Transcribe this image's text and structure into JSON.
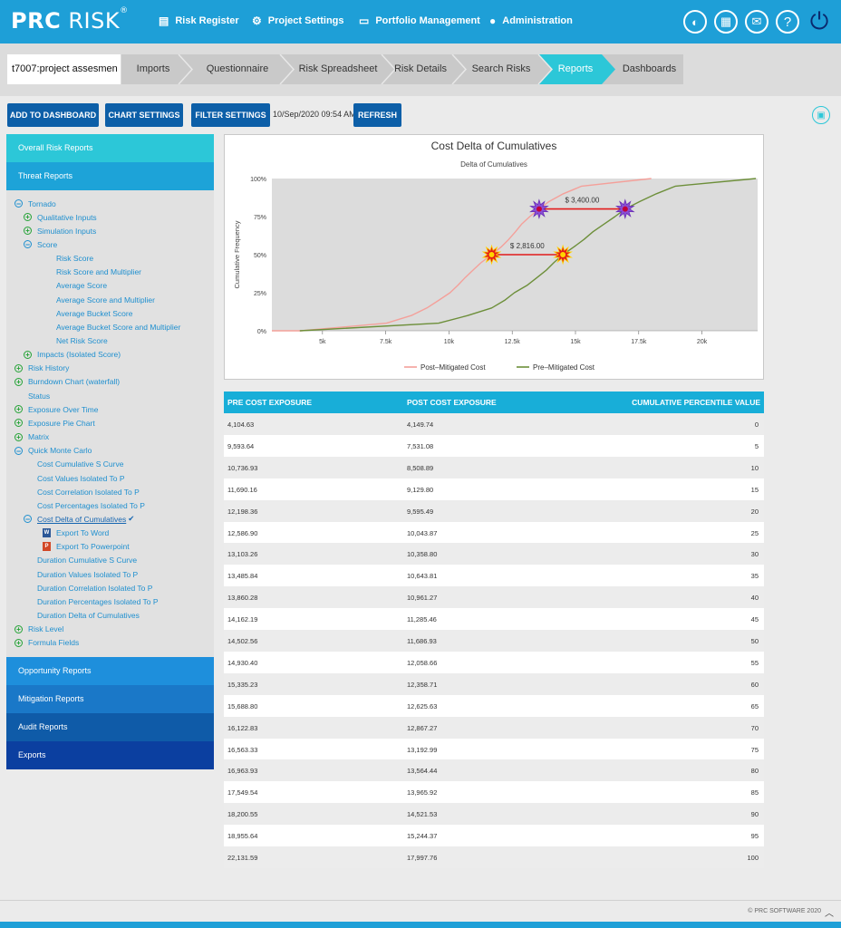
{
  "app": {
    "logo_bold": "PRC",
    "logo_thin": "RISK",
    "logo_mark": "®"
  },
  "nav": [
    {
      "label": "Risk Register",
      "icon": "register-icon"
    },
    {
      "label": "Project Settings",
      "icon": "settings-icon"
    },
    {
      "label": "Portfolio Management",
      "icon": "folder-icon"
    },
    {
      "label": "Administration",
      "icon": "user-icon"
    }
  ],
  "toolbar_icons": [
    "toggle-icon",
    "calendar-icon",
    "mail-icon",
    "help-icon",
    "power-icon"
  ],
  "project": {
    "name": "t7007:project assesmen"
  },
  "breadcrumbs": [
    "Imports",
    "Questionnaire",
    "Risk Spreadsheet",
    "Risk Details",
    "Search Risks",
    "Reports",
    "Dashboards"
  ],
  "active_crumb": "Reports",
  "actions": {
    "add_dashboard": "ADD TO DASHBOARD",
    "chart_settings": "CHART SETTINGS",
    "filter_settings": "FILTER SETTINGS",
    "timestamp": "10/Sep/2020 09:54 AM",
    "refresh": "REFRESH"
  },
  "sidebar": {
    "sections": [
      "Overall Risk Reports",
      "Threat Reports",
      "Opportunity Reports",
      "Mitigation Reports",
      "Audit Reports",
      "Exports"
    ],
    "tree": [
      {
        "label": "Tornado",
        "level": 0,
        "node": "minus"
      },
      {
        "label": "Qualitative Inputs",
        "level": 1,
        "node": "plus"
      },
      {
        "label": "Simulation Inputs",
        "level": 1,
        "node": "plus"
      },
      {
        "label": "Score",
        "level": 1,
        "node": "minus"
      },
      {
        "label": "Risk Score",
        "level": 2,
        "node": "none"
      },
      {
        "label": "Risk Score and Multiplier",
        "level": 2,
        "node": "none"
      },
      {
        "label": "Average Score",
        "level": 2,
        "node": "none"
      },
      {
        "label": "Average Score and Multiplier",
        "level": 2,
        "node": "none"
      },
      {
        "label": "Average Bucket Score",
        "level": 2,
        "node": "none"
      },
      {
        "label": "Average Bucket Score and Multiplier",
        "level": 2,
        "node": "none"
      },
      {
        "label": "Net Risk Score",
        "level": 2,
        "node": "none"
      },
      {
        "label": "Impacts (Isolated Score)",
        "level": 1,
        "node": "plus"
      },
      {
        "label": "Risk History",
        "level": 0,
        "node": "plus"
      },
      {
        "label": "Burndown Chart (waterfall)",
        "level": 0,
        "node": "plus"
      },
      {
        "label": "Status",
        "level": 0,
        "node": "none"
      },
      {
        "label": "Exposure Over Time",
        "level": 0,
        "node": "plus"
      },
      {
        "label": "Exposure Pie Chart",
        "level": 0,
        "node": "plus"
      },
      {
        "label": "Matrix",
        "level": 0,
        "node": "plus"
      },
      {
        "label": "Quick Monte Carlo",
        "level": 0,
        "node": "minus"
      },
      {
        "label": "Cost Cumulative S Curve",
        "level": 1,
        "node": "none"
      },
      {
        "label": "Cost Values Isolated To P",
        "level": 1,
        "node": "none"
      },
      {
        "label": "Cost Correlation Isolated To P",
        "level": 1,
        "node": "none"
      },
      {
        "label": "Cost Percentages Isolated To P",
        "level": 1,
        "node": "none"
      },
      {
        "label": "Cost Delta of Cumulatives",
        "level": 1,
        "node": "minus",
        "selected": true,
        "check": "✔"
      },
      {
        "label": "Export To Word",
        "level": 2,
        "node": "word"
      },
      {
        "label": "Export To Powerpoint",
        "level": 2,
        "node": "ppt"
      },
      {
        "label": "Duration Cumulative S Curve",
        "level": 1,
        "node": "none"
      },
      {
        "label": "Duration Values Isolated To P",
        "level": 1,
        "node": "none"
      },
      {
        "label": "Duration Correlation Isolated To P",
        "level": 1,
        "node": "none"
      },
      {
        "label": "Duration Percentages Isolated To P",
        "level": 1,
        "node": "none"
      },
      {
        "label": "Duration Delta of Cumulatives",
        "level": 1,
        "node": "none"
      },
      {
        "label": "Risk Level",
        "level": 0,
        "node": "plus"
      },
      {
        "label": "Formula Fields",
        "level": 0,
        "node": "plus"
      }
    ]
  },
  "chart_data": {
    "type": "line",
    "title": "Cost Delta of Cumulatives",
    "subtitle": "Delta of Cumulatives",
    "ylabel": "Cumulative Frequency",
    "xlabel": "",
    "xlim": [
      3000,
      22200
    ],
    "ylim": [
      0,
      100
    ],
    "xticks": [
      5000,
      7500,
      10000,
      12500,
      15000,
      17500,
      20000
    ],
    "xtick_labels": [
      "5k",
      "7.5k",
      "10k",
      "12.5k",
      "15k",
      "17.5k",
      "20k"
    ],
    "yticks": [
      0,
      25,
      50,
      75,
      100
    ],
    "ytick_labels": [
      "0%",
      "25%",
      "50%",
      "75%",
      "100%"
    ],
    "series": [
      {
        "name": "Post–Mitigated Cost",
        "color": "#f4a09a",
        "x": [
          3000,
          4149.74,
          7531.08,
          8508.89,
          9129.8,
          9595.49,
          10043.87,
          10358.8,
          10643.81,
          10961.27,
          11285.46,
          11686.93,
          12058.66,
          12358.71,
          12625.63,
          12867.27,
          13192.99,
          13564.44,
          13965.92,
          14521.53,
          15244.37,
          17997.76
        ],
        "y": [
          0,
          0,
          5,
          10,
          15,
          20,
          25,
          30,
          35,
          40,
          45,
          50,
          55,
          60,
          65,
          70,
          75,
          80,
          85,
          90,
          95,
          100
        ]
      },
      {
        "name": "Pre–Mitigated Cost",
        "color": "#6d8f3a",
        "x": [
          4104.63,
          9593.64,
          10736.93,
          11690.16,
          12198.36,
          12586.9,
          13103.26,
          13485.84,
          13860.28,
          14162.19,
          14502.56,
          14930.4,
          15335.23,
          15688.8,
          16122.83,
          16563.33,
          16963.93,
          17549.54,
          18200.55,
          18955.64,
          22131.59
        ],
        "y": [
          0,
          5,
          10,
          15,
          20,
          25,
          30,
          35,
          40,
          45,
          50,
          55,
          60,
          65,
          70,
          75,
          80,
          85,
          90,
          95,
          100
        ]
      }
    ],
    "annotations": [
      {
        "label": "$ 2,816.00",
        "y": 50,
        "x_from": 11686.93,
        "x_to": 14502.56,
        "marker": "red-star"
      },
      {
        "label": "$ 3,400.00",
        "y": 80,
        "x_from": 13564.44,
        "x_to": 16963.93,
        "marker": "purple-star"
      }
    ],
    "legend_position": "bottom",
    "grid": false,
    "plot_background": "#dcdcdc"
  },
  "table": {
    "headers": [
      "PRE COST EXPOSURE",
      "POST COST EXPOSURE",
      "CUMULATIVE PERCENTILE VALUE"
    ],
    "rows": [
      [
        "4,104.63",
        "4,149.74",
        "0"
      ],
      [
        "9,593.64",
        "7,531.08",
        "5"
      ],
      [
        "10,736.93",
        "8,508.89",
        "10"
      ],
      [
        "11,690.16",
        "9,129.80",
        "15"
      ],
      [
        "12,198.36",
        "9,595.49",
        "20"
      ],
      [
        "12,586.90",
        "10,043.87",
        "25"
      ],
      [
        "13,103.26",
        "10,358.80",
        "30"
      ],
      [
        "13,485.84",
        "10,643.81",
        "35"
      ],
      [
        "13,860.28",
        "10,961.27",
        "40"
      ],
      [
        "14,162.19",
        "11,285.46",
        "45"
      ],
      [
        "14,502.56",
        "11,686.93",
        "50"
      ],
      [
        "14,930.40",
        "12,058.66",
        "55"
      ],
      [
        "15,335.23",
        "12,358.71",
        "60"
      ],
      [
        "15,688.80",
        "12,625.63",
        "65"
      ],
      [
        "16,122.83",
        "12,867.27",
        "70"
      ],
      [
        "16,563.33",
        "13,192.99",
        "75"
      ],
      [
        "16,963.93",
        "13,564.44",
        "80"
      ],
      [
        "17,549.54",
        "13,965.92",
        "85"
      ],
      [
        "18,200.55",
        "14,521.53",
        "90"
      ],
      [
        "18,955.64",
        "15,244.37",
        "95"
      ],
      [
        "22,131.59",
        "17,997.76",
        "100"
      ]
    ]
  },
  "footer": {
    "copyright": "© PRC SOFTWARE 2020",
    "up_icon": "chevron-up-icon"
  }
}
